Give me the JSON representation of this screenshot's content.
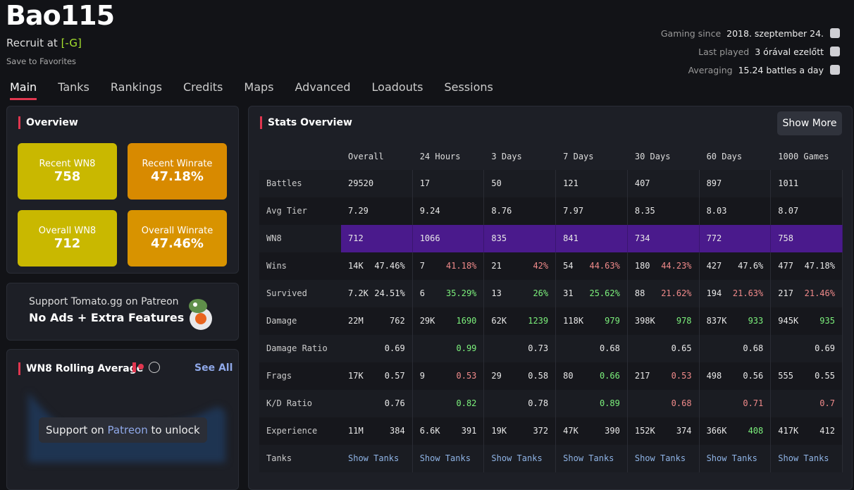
{
  "header": {
    "name": "Bao115",
    "role": "Recruit at",
    "clan": "[-G]",
    "favorite": "Save to Favorites"
  },
  "meta": [
    {
      "label": "Gaming since",
      "value": "2018. szeptember 24."
    },
    {
      "label": "Last played",
      "value": "3 órával ezelőtt"
    },
    {
      "label": "Averaging",
      "value": "15.24 battles a day"
    }
  ],
  "tabs": [
    "Main",
    "Tanks",
    "Rankings",
    "Credits",
    "Maps",
    "Advanced",
    "Loadouts",
    "Sessions"
  ],
  "overview": {
    "title": "Overview",
    "cards": [
      {
        "label": "Recent WN8",
        "value": "758",
        "color": "#c9b800"
      },
      {
        "label": "Recent Winrate",
        "value": "47.18%",
        "color": "#d88a00"
      },
      {
        "label": "Overall WN8",
        "value": "712",
        "color": "#c9b800"
      },
      {
        "label": "Overall Winrate",
        "value": "47.46%",
        "color": "#d89300"
      }
    ]
  },
  "patreon": {
    "line1": "Support Tomato.gg on Patreon",
    "line2": "No Ads + Extra Features"
  },
  "rolling": {
    "title": "WN8 Rolling Average",
    "see_all": "See All",
    "unlock_before": "Support on",
    "unlock_link": "Patreon",
    "unlock_after": "to unlock"
  },
  "stats": {
    "title": "Stats Overview",
    "button": "Show More",
    "columns": [
      "Overall",
      "24 Hours",
      "3 Days",
      "7 Days",
      "30 Days",
      "60 Days",
      "1000 Games"
    ],
    "rows": [
      {
        "label": "Battles",
        "cells": [
          {
            "left": "29520"
          },
          {
            "left": "17"
          },
          {
            "left": "50"
          },
          {
            "left": "121"
          },
          {
            "left": "407"
          },
          {
            "left": "897"
          },
          {
            "left": "1011"
          }
        ]
      },
      {
        "label": "Avg Tier",
        "cells": [
          {
            "left": "7.29"
          },
          {
            "left": "9.24"
          },
          {
            "left": "8.76"
          },
          {
            "left": "7.97"
          },
          {
            "left": "8.35"
          },
          {
            "left": "8.03"
          },
          {
            "left": "8.07"
          }
        ]
      },
      {
        "label": "WN8",
        "highlight": "#4a1a8c",
        "cells": [
          {
            "left": "712"
          },
          {
            "left": "1066"
          },
          {
            "left": "835"
          },
          {
            "left": "841"
          },
          {
            "left": "734"
          },
          {
            "left": "772"
          },
          {
            "left": "758"
          }
        ]
      },
      {
        "label": "Wins",
        "cells": [
          {
            "left": "14K",
            "right": "47.46%"
          },
          {
            "left": "7",
            "right": "41.18%",
            "tone": "red"
          },
          {
            "left": "21",
            "right": "42%",
            "tone": "red"
          },
          {
            "left": "54",
            "right": "44.63%",
            "tone": "red"
          },
          {
            "left": "180",
            "right": "44.23%",
            "tone": "red"
          },
          {
            "left": "427",
            "right": "47.6%"
          },
          {
            "left": "477",
            "right": "47.18%"
          }
        ]
      },
      {
        "label": "Survived",
        "cells": [
          {
            "left": "7.2K",
            "right": "24.51%"
          },
          {
            "left": "6",
            "right": "35.29%",
            "tone": "green"
          },
          {
            "left": "13",
            "right": "26%",
            "tone": "green"
          },
          {
            "left": "31",
            "right": "25.62%",
            "tone": "green"
          },
          {
            "left": "88",
            "right": "21.62%",
            "tone": "red"
          },
          {
            "left": "194",
            "right": "21.63%",
            "tone": "red"
          },
          {
            "left": "217",
            "right": "21.46%",
            "tone": "red"
          }
        ]
      },
      {
        "label": "Damage",
        "cells": [
          {
            "left": "22M",
            "right": "762"
          },
          {
            "left": "29K",
            "right": "1690",
            "tone": "green"
          },
          {
            "left": "62K",
            "right": "1239",
            "tone": "green"
          },
          {
            "left": "118K",
            "right": "979",
            "tone": "green"
          },
          {
            "left": "398K",
            "right": "978",
            "tone": "green"
          },
          {
            "left": "837K",
            "right": "933",
            "tone": "green"
          },
          {
            "left": "945K",
            "right": "935",
            "tone": "green"
          }
        ]
      },
      {
        "label": "Damage Ratio",
        "cells": [
          {
            "right": "0.69"
          },
          {
            "right": "0.99",
            "tone": "green"
          },
          {
            "right": "0.73"
          },
          {
            "right": "0.68"
          },
          {
            "right": "0.65"
          },
          {
            "right": "0.68"
          },
          {
            "right": "0.69"
          }
        ]
      },
      {
        "label": "Frags",
        "cells": [
          {
            "left": "17K",
            "right": "0.57"
          },
          {
            "left": "9",
            "right": "0.53",
            "tone": "red"
          },
          {
            "left": "29",
            "right": "0.58"
          },
          {
            "left": "80",
            "right": "0.66",
            "tone": "green"
          },
          {
            "left": "217",
            "right": "0.53",
            "tone": "red"
          },
          {
            "left": "498",
            "right": "0.56"
          },
          {
            "left": "555",
            "right": "0.55"
          }
        ]
      },
      {
        "label": "K/D Ratio",
        "cells": [
          {
            "right": "0.76"
          },
          {
            "right": "0.82",
            "tone": "green"
          },
          {
            "right": "0.78"
          },
          {
            "right": "0.89",
            "tone": "green"
          },
          {
            "right": "0.68",
            "tone": "red"
          },
          {
            "right": "0.71",
            "tone": "red"
          },
          {
            "right": "0.7",
            "tone": "red"
          }
        ]
      },
      {
        "label": "Experience",
        "cells": [
          {
            "left": "11M",
            "right": "384"
          },
          {
            "left": "6.6K",
            "right": "391"
          },
          {
            "left": "19K",
            "right": "372"
          },
          {
            "left": "47K",
            "right": "390"
          },
          {
            "left": "152K",
            "right": "374"
          },
          {
            "left": "366K",
            "right": "408",
            "tone": "green"
          },
          {
            "left": "417K",
            "right": "412"
          }
        ]
      },
      {
        "label": "Tanks",
        "cells": [
          {
            "link": "Show Tanks"
          },
          {
            "link": "Show Tanks"
          },
          {
            "link": "Show Tanks"
          },
          {
            "link": "Show Tanks"
          },
          {
            "link": "Show Tanks"
          },
          {
            "link": "Show Tanks"
          },
          {
            "link": "Show Tanks"
          }
        ]
      }
    ]
  }
}
